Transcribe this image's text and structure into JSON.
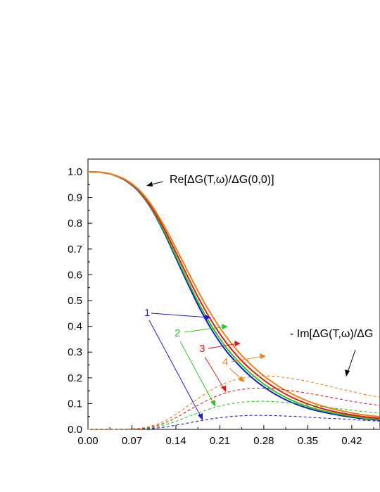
{
  "chart_data": {
    "type": "line",
    "title": "",
    "xlabel": "",
    "ylabel": "",
    "xlim": [
      0.0,
      0.465
    ],
    "ylim": [
      0.0,
      1.05
    ],
    "xticks": [
      "0.00",
      "0.07",
      "0.14",
      "0.21",
      "0.28",
      "0.35",
      "0.42"
    ],
    "yticks": [
      "0.0",
      "0.1",
      "0.2",
      "0.3",
      "0.4",
      "0.5",
      "0.6",
      "0.7",
      "0.8",
      "0.9",
      "1.0"
    ],
    "grid": false,
    "annotations": {
      "re": "Re[ΔG(T,ω)/ΔG(0,0)]",
      "im": "- Im[ΔG(T,ω)/ΔG",
      "label_1": "1",
      "label_2": "2",
      "label_3": "3",
      "label_4": "4"
    },
    "colors": {
      "1": "#1a1acc",
      "2": "#22cc22",
      "3": "#e01a1a",
      "4": "#f08010"
    },
    "series": [
      {
        "id": "1",
        "style": "solid",
        "color": "#1a1acc",
        "x": [
          0.0,
          0.02,
          0.04,
          0.06,
          0.08,
          0.1,
          0.12,
          0.14,
          0.16,
          0.18,
          0.2,
          0.22,
          0.24,
          0.26,
          0.28,
          0.3,
          0.32,
          0.34,
          0.36,
          0.38,
          0.4,
          0.42,
          0.44,
          0.465
        ],
        "y": [
          1.0,
          0.998,
          0.988,
          0.965,
          0.925,
          0.86,
          0.77,
          0.665,
          0.56,
          0.46,
          0.375,
          0.305,
          0.25,
          0.203,
          0.165,
          0.134,
          0.109,
          0.09,
          0.075,
          0.064,
          0.055,
          0.047,
          0.041,
          0.036
        ]
      },
      {
        "id": "2",
        "style": "solid",
        "color": "#22cc22",
        "x": [
          0.0,
          0.02,
          0.04,
          0.06,
          0.08,
          0.1,
          0.12,
          0.14,
          0.16,
          0.18,
          0.2,
          0.22,
          0.24,
          0.26,
          0.28,
          0.3,
          0.32,
          0.34,
          0.36,
          0.38,
          0.4,
          0.42,
          0.44,
          0.465
        ],
        "y": [
          1.0,
          0.998,
          0.988,
          0.966,
          0.927,
          0.863,
          0.775,
          0.673,
          0.57,
          0.473,
          0.389,
          0.318,
          0.262,
          0.215,
          0.176,
          0.144,
          0.118,
          0.097,
          0.081,
          0.069,
          0.059,
          0.051,
          0.044,
          0.039
        ]
      },
      {
        "id": "3",
        "style": "solid",
        "color": "#e01a1a",
        "x": [
          0.0,
          0.02,
          0.04,
          0.06,
          0.08,
          0.1,
          0.12,
          0.14,
          0.16,
          0.18,
          0.2,
          0.22,
          0.24,
          0.26,
          0.28,
          0.3,
          0.32,
          0.34,
          0.36,
          0.38,
          0.4,
          0.42,
          0.44,
          0.465
        ],
        "y": [
          1.0,
          0.998,
          0.989,
          0.967,
          0.93,
          0.868,
          0.784,
          0.687,
          0.587,
          0.492,
          0.408,
          0.337,
          0.279,
          0.231,
          0.191,
          0.158,
          0.13,
          0.108,
          0.09,
          0.076,
          0.065,
          0.056,
          0.049,
          0.043
        ]
      },
      {
        "id": "4",
        "style": "solid",
        "color": "#f08010",
        "x": [
          0.0,
          0.02,
          0.04,
          0.06,
          0.08,
          0.1,
          0.12,
          0.14,
          0.16,
          0.18,
          0.2,
          0.22,
          0.24,
          0.26,
          0.28,
          0.3,
          0.32,
          0.34,
          0.36,
          0.38,
          0.4,
          0.42,
          0.44,
          0.465
        ],
        "y": [
          1.0,
          0.998,
          0.989,
          0.969,
          0.933,
          0.875,
          0.796,
          0.704,
          0.608,
          0.515,
          0.432,
          0.36,
          0.3,
          0.25,
          0.208,
          0.173,
          0.144,
          0.12,
          0.101,
          0.086,
          0.074,
          0.064,
          0.056,
          0.049
        ]
      },
      {
        "id": "1",
        "style": "dashed",
        "color": "#1a1acc",
        "x": [
          0.0,
          0.04,
          0.08,
          0.1,
          0.12,
          0.14,
          0.16,
          0.18,
          0.2,
          0.22,
          0.24,
          0.26,
          0.28,
          0.3,
          0.32,
          0.34,
          0.36,
          0.38,
          0.4,
          0.42,
          0.44,
          0.465
        ],
        "y": [
          0.0,
          0.0,
          0.001,
          0.003,
          0.008,
          0.016,
          0.025,
          0.034,
          0.042,
          0.048,
          0.052,
          0.054,
          0.054,
          0.053,
          0.051,
          0.049,
          0.046,
          0.043,
          0.041,
          0.038,
          0.035,
          0.032
        ]
      },
      {
        "id": "2",
        "style": "dashed",
        "color": "#22cc22",
        "x": [
          0.0,
          0.04,
          0.08,
          0.1,
          0.12,
          0.14,
          0.16,
          0.18,
          0.2,
          0.22,
          0.24,
          0.26,
          0.28,
          0.3,
          0.32,
          0.34,
          0.36,
          0.38,
          0.4,
          0.42,
          0.44,
          0.465
        ],
        "y": [
          0.0,
          0.0,
          0.002,
          0.006,
          0.016,
          0.031,
          0.05,
          0.068,
          0.084,
          0.096,
          0.104,
          0.108,
          0.109,
          0.107,
          0.103,
          0.098,
          0.092,
          0.086,
          0.08,
          0.074,
          0.069,
          0.063
        ]
      },
      {
        "id": "3",
        "style": "dashed",
        "color": "#e01a1a",
        "x": [
          0.0,
          0.04,
          0.08,
          0.1,
          0.12,
          0.14,
          0.16,
          0.18,
          0.2,
          0.22,
          0.24,
          0.26,
          0.28,
          0.3,
          0.32,
          0.34,
          0.36,
          0.38,
          0.4,
          0.42,
          0.44,
          0.465
        ],
        "y": [
          0.0,
          0.0,
          0.003,
          0.009,
          0.023,
          0.045,
          0.073,
          0.1,
          0.124,
          0.142,
          0.153,
          0.159,
          0.16,
          0.157,
          0.151,
          0.144,
          0.136,
          0.127,
          0.118,
          0.109,
          0.101,
          0.093
        ]
      },
      {
        "id": "4",
        "style": "dashed",
        "color": "#f08010",
        "x": [
          0.0,
          0.04,
          0.08,
          0.1,
          0.12,
          0.14,
          0.16,
          0.18,
          0.2,
          0.22,
          0.24,
          0.26,
          0.28,
          0.3,
          0.32,
          0.34,
          0.36,
          0.38,
          0.4,
          0.42,
          0.44,
          0.465
        ],
        "y": [
          0.0,
          0.0,
          0.004,
          0.012,
          0.03,
          0.058,
          0.093,
          0.127,
          0.158,
          0.181,
          0.196,
          0.204,
          0.207,
          0.205,
          0.199,
          0.191,
          0.181,
          0.17,
          0.158,
          0.147,
          0.136,
          0.125
        ]
      }
    ]
  }
}
